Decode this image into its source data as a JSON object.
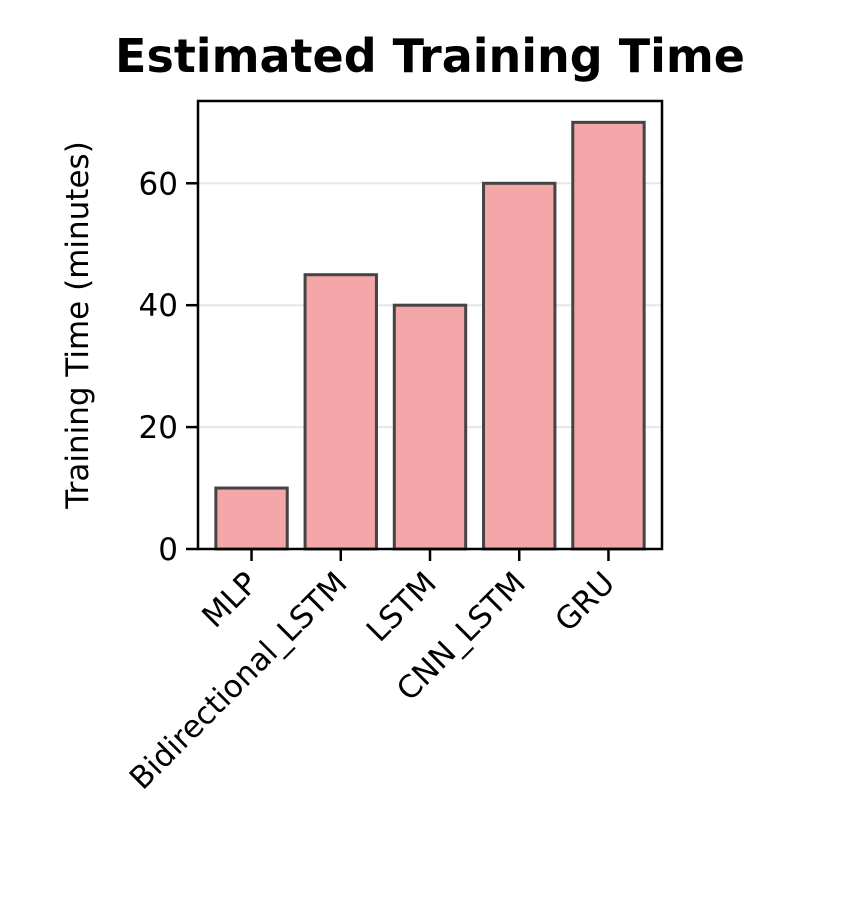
{
  "chart_data": {
    "type": "bar",
    "title": "Estimated Training Time",
    "xlabel": "",
    "ylabel": "Training Time (minutes)",
    "categories": [
      "MLP",
      "Bidirectional_LSTM",
      "LSTM",
      "CNN_LSTM",
      "GRU"
    ],
    "values": [
      10,
      45,
      40,
      60,
      70
    ],
    "ylim": [
      0,
      73.5
    ],
    "yticks": [
      "0",
      "20",
      "40",
      "60"
    ],
    "ytick_values": [
      0,
      20,
      40,
      60
    ],
    "grid": "y",
    "legend": "none",
    "colors": {
      "bar_fill": "#f4a6a8",
      "bar_edge": "#444444",
      "grid": "#e6e6e6",
      "axis": "#000000"
    }
  }
}
